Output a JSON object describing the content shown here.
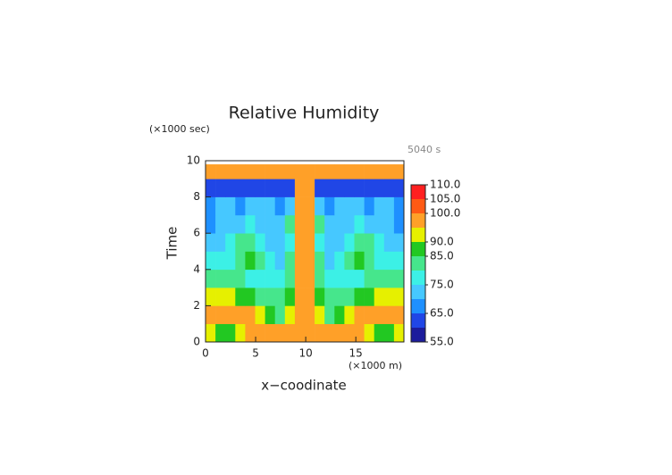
{
  "chart_data": {
    "type": "contour",
    "title": "Relative Humidity",
    "ylabel_unit": "(×1000 sec)",
    "annotation": "5040 s",
    "ylabel": "Time",
    "xlabel": "x−coodinate",
    "xlabel_unit": "(×1000 m)",
    "xlim": [
      0,
      19.8
    ],
    "xticks": [
      0,
      5,
      10,
      15
    ],
    "ylim": [
      0,
      10
    ],
    "yticks": [
      0,
      2,
      4,
      6,
      8,
      10
    ],
    "x_bins": [
      0,
      0.99,
      1.98,
      2.97,
      3.96,
      4.95,
      5.94,
      6.93,
      7.92,
      8.91,
      9.9,
      10.89,
      11.88,
      12.87,
      13.86,
      14.85,
      15.84,
      16.83,
      17.82,
      18.81,
      19.8
    ],
    "y_bins": [
      0,
      1,
      2,
      3,
      4,
      5,
      6,
      7,
      8,
      9,
      9.8
    ],
    "z": [
      [
        92,
        88,
        86,
        90,
        95,
        97,
        97,
        97,
        95,
        98,
        98,
        95,
        97,
        97,
        97,
        95,
        90,
        86,
        88,
        92
      ],
      [
        97,
        97,
        97,
        97,
        96,
        93,
        86,
        84,
        90,
        98,
        98,
        90,
        84,
        86,
        93,
        96,
        97,
        97,
        97,
        97
      ],
      [
        92,
        92,
        90,
        88,
        85,
        83,
        82,
        83,
        86,
        97,
        97,
        86,
        83,
        82,
        83,
        85,
        88,
        90,
        92,
        92
      ],
      [
        84,
        84,
        82,
        80,
        78,
        77,
        76,
        78,
        84,
        97,
        97,
        84,
        78,
        76,
        77,
        78,
        80,
        82,
        84,
        84
      ],
      [
        77,
        76,
        78,
        82,
        86,
        80,
        76,
        74,
        80,
        97,
        97,
        80,
        74,
        76,
        80,
        86,
        82,
        78,
        76,
        77
      ],
      [
        72,
        74,
        77,
        80,
        84,
        78,
        74,
        74,
        78,
        97,
        97,
        78,
        74,
        74,
        78,
        84,
        80,
        77,
        74,
        72
      ],
      [
        66,
        70,
        72,
        74,
        76,
        74,
        72,
        72,
        80,
        97,
        97,
        80,
        72,
        72,
        74,
        76,
        74,
        72,
        70,
        66
      ],
      [
        68,
        70,
        70,
        67,
        72,
        74,
        72,
        68,
        72,
        97,
        97,
        72,
        68,
        72,
        74,
        72,
        67,
        70,
        70,
        68
      ],
      [
        63,
        62,
        64,
        62,
        63,
        64,
        63,
        62,
        64,
        97,
        97,
        64,
        62,
        63,
        64,
        63,
        62,
        64,
        62,
        63
      ],
      [
        97,
        97,
        97,
        97,
        97,
        97,
        97,
        97,
        97,
        97,
        97,
        97,
        97,
        97,
        97,
        97,
        97,
        97,
        97,
        97
      ]
    ],
    "levels": [
      55,
      60,
      65,
      70,
      75,
      80,
      85,
      90,
      95,
      100,
      105,
      110
    ],
    "colors": [
      "#1c1c9c",
      "#2046e6",
      "#1e90ff",
      "#46c8ff",
      "#3cf0e6",
      "#46e68c",
      "#22c822",
      "#e6f000",
      "#ffa028",
      "#ff5a14",
      "#ff2020",
      "#ff9a9a"
    ],
    "colorbar_ticks": [
      {
        "value": 110,
        "label": "110.0"
      },
      {
        "value": 105,
        "label": "105.0"
      },
      {
        "value": 100,
        "label": "100.0"
      },
      {
        "value": 90,
        "label": "90.0"
      },
      {
        "value": 85,
        "label": "85.0"
      },
      {
        "value": 75,
        "label": "75.0"
      },
      {
        "value": 65,
        "label": "65.0"
      },
      {
        "value": 55,
        "label": "55.0"
      }
    ]
  }
}
